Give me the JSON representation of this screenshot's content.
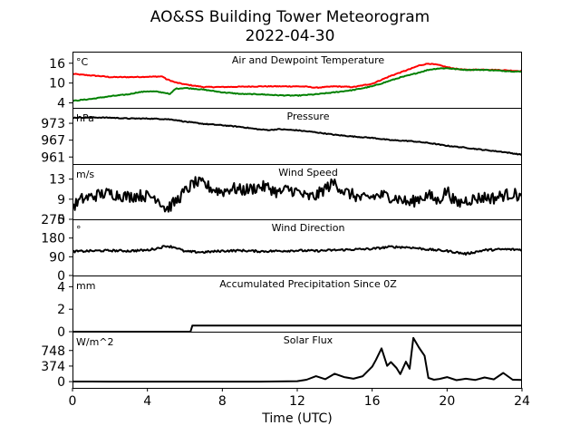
{
  "chart_data": {
    "type": "line",
    "title": "AO&SS Building Tower Meteorogram",
    "subtitle": "2022-04-30",
    "xlabel": "Time (UTC)",
    "xlim": [
      0,
      24
    ],
    "xticks": [
      0,
      4,
      8,
      12,
      16,
      20,
      24
    ],
    "grid": false,
    "panels": [
      {
        "title": "Air and Dewpoint Temperature",
        "unit": "°C",
        "ylim": [
          2.5,
          19.5
        ],
        "yticks": [
          4,
          10,
          16
        ],
        "series": [
          {
            "color": "#ff0000",
            "x": [
              0,
              0.5,
              1,
              1.5,
              2,
              3,
              4,
              4.8,
              5,
              5.5,
              6,
              6.5,
              7,
              8,
              9,
              10,
              11,
              12,
              12.5,
              13,
              14,
              15,
              16,
              16.5,
              17,
              17.5,
              18,
              18.5,
              19,
              19.5,
              20,
              20.5,
              21,
              22,
              23,
              24
            ],
            "y": [
              12.8,
              12.5,
              12.3,
              12.1,
              11.8,
              11.8,
              11.9,
              12.0,
              11.2,
              10.2,
              9.6,
              9.2,
              8.8,
              8.8,
              8.9,
              9.0,
              9.0,
              9.0,
              8.9,
              8.6,
              9.0,
              8.8,
              9.8,
              11.0,
              12.2,
              13.2,
              14.2,
              15.3,
              15.9,
              15.5,
              14.8,
              14.3,
              14.0,
              14.1,
              13.9,
              13.6
            ]
          },
          {
            "color": "#008000",
            "x": [
              0,
              0.5,
              1,
              1.5,
              2,
              2.5,
              3,
              3.5,
              4,
              4.5,
              5,
              5.2,
              5.5,
              6,
              6.5,
              7,
              8,
              9,
              10,
              11,
              12,
              13,
              14,
              15,
              16,
              16.5,
              17,
              17.5,
              18,
              18.5,
              19,
              19.5,
              20,
              20.5,
              21,
              22,
              23,
              24
            ],
            "y": [
              4.6,
              4.9,
              5.2,
              5.6,
              6.0,
              6.3,
              6.6,
              7.2,
              7.5,
              7.4,
              7.0,
              6.6,
              8.3,
              8.5,
              8.3,
              8.0,
              7.2,
              6.7,
              6.6,
              6.3,
              6.2,
              6.6,
              7.2,
              7.9,
              9.0,
              9.9,
              10.8,
              11.7,
              12.4,
              13.2,
              14.0,
              14.4,
              14.5,
              14.2,
              14.0,
              14.0,
              13.7,
              13.4
            ]
          }
        ]
      },
      {
        "title": "Pressure",
        "unit": "hPa",
        "ylim": [
          958.5,
          978.5
        ],
        "yticks": [
          961,
          967,
          973
        ],
        "series": [
          {
            "color": "#000000",
            "x": [
              0,
              1,
              2,
              3,
              4,
              5,
              5.5,
              6,
              7,
              8,
              9,
              10,
              10.5,
              11,
              12,
              13,
              14,
              15,
              16,
              17,
              18,
              19,
              20,
              21,
              22,
              23,
              24
            ],
            "y": [
              975.0,
              975.1,
              975.0,
              974.7,
              974.7,
              974.5,
              974.2,
              973.6,
              972.8,
              972.3,
              971.7,
              970.8,
              970.6,
              970.9,
              970.5,
              969.8,
              968.9,
              968.3,
              967.8,
              967.0,
              966.7,
              966.0,
              965.0,
              964.3,
              963.5,
              962.8,
              961.8
            ]
          }
        ]
      },
      {
        "title": "Wind Speed",
        "unit": "m/s",
        "ylim": [
          5,
          16
        ],
        "yticks": [
          5,
          9,
          13
        ],
        "series": [
          {
            "color": "#000000",
            "x": [
              0,
              0.5,
              1,
              1.5,
              2,
              2.5,
              3,
              3.5,
              4,
              4.5,
              5,
              5.5,
              6,
              6.5,
              7,
              7.5,
              8,
              8.5,
              9,
              9.5,
              10,
              10.5,
              11,
              11.5,
              12,
              12.5,
              13,
              13.5,
              14,
              14.5,
              15,
              15.5,
              16,
              16.5,
              17,
              17.5,
              18,
              18.5,
              19,
              19.5,
              20,
              20.5,
              21,
              21.5,
              22,
              22.5,
              23,
              23.5,
              24
            ],
            "y": [
              7.5,
              9.0,
              9.5,
              10.0,
              10.2,
              9.8,
              9.5,
              9.8,
              9.6,
              9.4,
              7.0,
              8.5,
              10.5,
              12.3,
              12.0,
              11.0,
              10.5,
              11.2,
              10.8,
              11.0,
              11.5,
              11.3,
              10.2,
              11.0,
              10.5,
              9.4,
              9.6,
              11.2,
              12.3,
              10.5,
              9.8,
              9.0,
              9.5,
              9.8,
              9.5,
              9.0,
              8.2,
              9.2,
              9.8,
              8.6,
              10.8,
              8.0,
              8.8,
              9.1,
              9.4,
              9.2,
              9.8,
              10.1,
              9.5
            ]
          }
        ]
      },
      {
        "title": "Wind Direction",
        "unit": "°",
        "ylim": [
          0,
          270
        ],
        "yticks": [
          0,
          90,
          180,
          270
        ],
        "series": [
          {
            "color": "#000000",
            "x": [
              0,
              1,
              2,
              3,
              4,
              4.5,
              5,
              5.5,
              6,
              7,
              8,
              9,
              10,
              11,
              12,
              13,
              14,
              15,
              16,
              17,
              18,
              19,
              20,
              21,
              22,
              23,
              24
            ],
            "y": [
              115,
              118,
              120,
              118,
              122,
              130,
              142,
              135,
              115,
              112,
              118,
              120,
              116,
              118,
              120,
              118,
              122,
              125,
              128,
              138,
              135,
              125,
              118,
              104,
              122,
              126,
              124
            ]
          }
        ]
      },
      {
        "title": "Accumulated Precipitation Since 0Z",
        "unit": "mm",
        "ylim": [
          0,
          5
        ],
        "yticks": [
          0,
          2,
          4
        ],
        "series": [
          {
            "color": "#000000",
            "x": [
              0,
              6.3,
              6.4,
              24
            ],
            "y": [
              0,
              0,
              0.55,
              0.55
            ]
          }
        ]
      },
      {
        "title": "Solar Flux",
        "unit": "W/m^2",
        "ylim": [
          -150,
          1200
        ],
        "yticks": [
          0,
          374,
          748
        ],
        "series": [
          {
            "color": "#000000",
            "x": [
              0,
              1,
              2,
              3,
              4,
              5,
              6,
              7,
              8,
              9,
              10,
              11,
              12,
              12.5,
              13,
              13.5,
              14,
              14.5,
              15,
              15.5,
              16,
              16.2,
              16.5,
              16.8,
              17,
              17.3,
              17.5,
              17.8,
              18,
              18.2,
              18.5,
              18.8,
              19,
              19.3,
              19.6,
              20,
              20.5,
              21,
              21.5,
              22,
              22.5,
              23,
              23.5,
              24
            ],
            "y": [
              2,
              2,
              0,
              0,
              0,
              0,
              0,
              0,
              0,
              0,
              0,
              5,
              12,
              45,
              130,
              60,
              190,
              110,
              70,
              130,
              360,
              520,
              800,
              380,
              470,
              330,
              180,
              480,
              310,
              1050,
              820,
              620,
              90,
              45,
              65,
              110,
              35,
              70,
              40,
              100,
              55,
              210,
              45,
              40
            ]
          }
        ]
      }
    ]
  }
}
